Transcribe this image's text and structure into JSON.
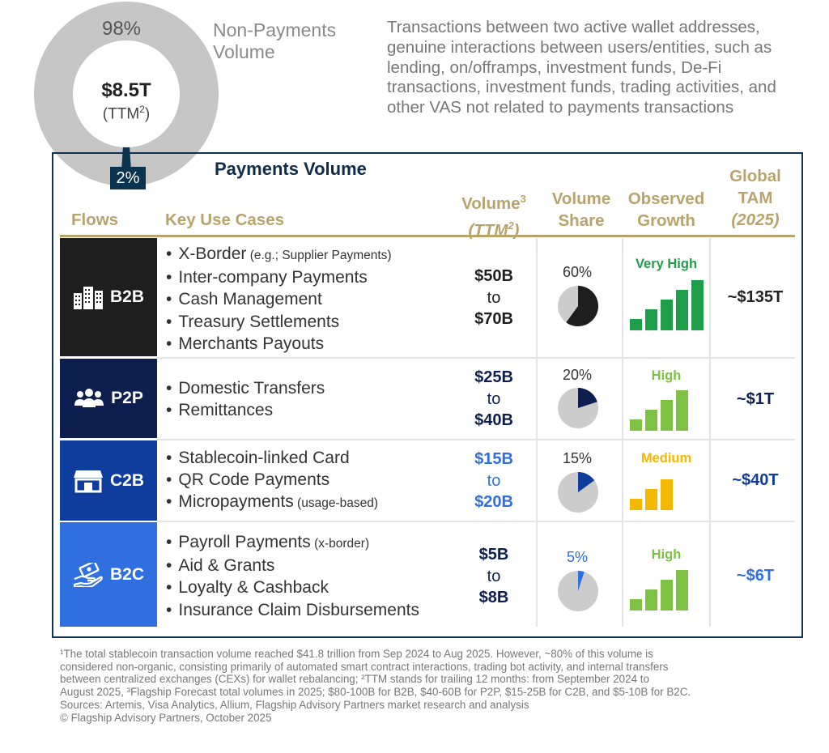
{
  "non_payments": {
    "share_label": "98%",
    "total": "$8.5T",
    "total_note": "(TTM",
    "total_note_sup": "2",
    "total_note_end": ")",
    "title_line1": "Non-Payments",
    "title_line2": "Volume",
    "description": "Transactions between two active wallet addresses, genuine interactions between users/entities, such as lending, on/offramps, investment funds, De-Fi transactions, investment funds, trading activities, and other VAS not related to payments transactions"
  },
  "payments_share_label": "2%",
  "payments_title": "Payments Volume",
  "headers": {
    "flows": "Flows",
    "use_cases": "Key Use Cases",
    "volume_line1": "Volume",
    "volume_sup": "3",
    "volume_line2": "(TTM",
    "volume_line2_sup": "2",
    "volume_line2_end": ")",
    "share_line1": "Volume",
    "share_line2": "Share",
    "growth_line1": "Observed",
    "growth_line2": "Growth",
    "tam_line1": "Global",
    "tam_line2": "TAM",
    "tam_line3": "(2025)"
  },
  "chart_data": {
    "type": "donut",
    "slices": [
      {
        "name": "Non-Payments Volume",
        "value": 98
      },
      {
        "name": "Payments Volume",
        "value": 2
      }
    ],
    "total": "$8.5T",
    "rows": [
      {
        "flow": "B2B",
        "use_cases": [
          {
            "text": "X-Border",
            "note": " (e.g.; Supplier Payments)"
          },
          {
            "text": "Inter-company Payments",
            "note": ""
          },
          {
            "text": "Cash Management",
            "note": ""
          },
          {
            "text": "Treasury Settlements",
            "note": ""
          },
          {
            "text": "Merchants Payouts",
            "note": ""
          }
        ],
        "volume_low": "$50B",
        "volume_to": "to",
        "volume_high": "$70B",
        "volume_share_pct": 60,
        "volume_share_label": "60%",
        "growth_label": "Very High",
        "growth_level": 5,
        "tam": "~$135T"
      },
      {
        "flow": "P2P",
        "use_cases": [
          {
            "text": "Domestic Transfers",
            "note": ""
          },
          {
            "text": "Remittances",
            "note": ""
          }
        ],
        "volume_low": "$25B",
        "volume_to": "to",
        "volume_high": "$40B",
        "volume_share_pct": 20,
        "volume_share_label": "20%",
        "growth_label": "High",
        "growth_level": 4,
        "tam": "~$1T"
      },
      {
        "flow": "C2B",
        "use_cases": [
          {
            "text": "Stablecoin-linked Card",
            "note": ""
          },
          {
            "text": "QR Code Payments",
            "note": ""
          },
          {
            "text": "Micropayments",
            "note": " (usage-based)"
          }
        ],
        "volume_low": "$15B",
        "volume_to": "to",
        "volume_high": "$20B",
        "volume_share_pct": 15,
        "volume_share_label": "15%",
        "growth_label": "Medium",
        "growth_level": 3,
        "tam": "~$40T"
      },
      {
        "flow": "B2C",
        "use_cases": [
          {
            "text": "Payroll Payments",
            "note": " (x-border)"
          },
          {
            "text": "Aid & Grants",
            "note": ""
          },
          {
            "text": "Loyalty & Cashback",
            "note": ""
          },
          {
            "text": "Insurance Claim Disbursements",
            "note": ""
          }
        ],
        "volume_low": "$5B",
        "volume_to": "to",
        "volume_high": "$8B",
        "volume_share_pct": 5,
        "volume_share_label": "5%",
        "growth_label": "High",
        "growth_level": 4,
        "tam": "~$6T"
      }
    ]
  },
  "colors": {
    "b2b": "#1e1e1e",
    "p2p": "#0c1f4f",
    "c2b": "#0e3d9e",
    "b2c": "#2f6fe0",
    "gold": "#b8a46a",
    "growth_very_high": "#1f9e4a",
    "growth_high": "#7dc242",
    "growth_medium": "#f5b800",
    "grey": "#cccccc"
  },
  "footnote": {
    "lines": [
      "¹The total stablecoin transaction volume reached $41.8 trillion from Sep 2024 to Aug 2025. However, ~80% of this volume is",
      "considered non-organic, consisting primarily of automated smart contract interactions, trading bot activity, and internal transfers",
      "between centralized exchanges (CEXs) for wallet rebalancing; ²TTM  stands for trailing 12 months: from September 2024 to",
      "August 2025, ³Flagship Forecast total volumes in 2025; $80-100B for B2B, $40-60B for P2P, $15-25B for C2B, and $5-10B for B2C.",
      "Sources: Artemis, Visa Analytics, Allium, Flagship Advisory Partners market research and analysis",
      "© Flagship Advisory Partners, October 2025"
    ]
  }
}
